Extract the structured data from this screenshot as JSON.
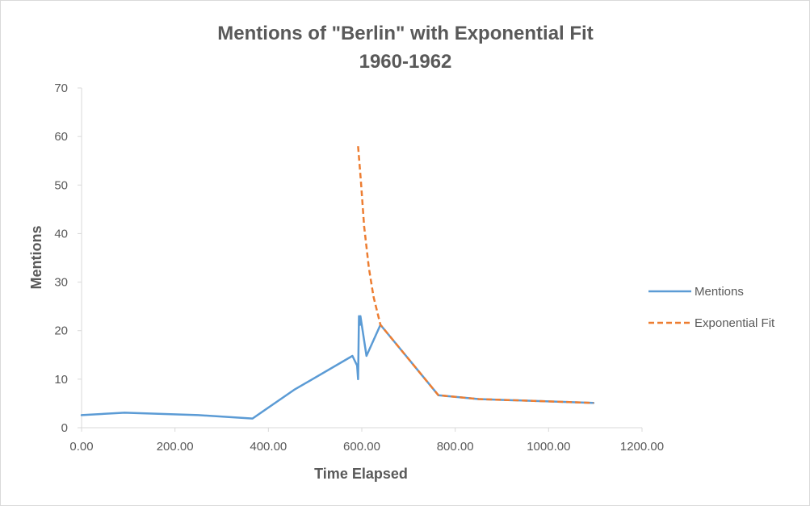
{
  "chart_data": {
    "type": "line",
    "title": "Mentions of \"Berlin\" with Exponential Fit",
    "subtitle": "1960-1962",
    "xlabel": "Time Elapsed",
    "ylabel": "Mentions",
    "xlim": [
      0,
      1200
    ],
    "ylim": [
      0,
      70
    ],
    "x_ticks": [
      "0.00",
      "200.00",
      "400.00",
      "600.00",
      "800.00",
      "1000.00",
      "1200.00"
    ],
    "y_ticks": [
      "0",
      "10",
      "20",
      "30",
      "40",
      "50",
      "60",
      "70"
    ],
    "grid": false,
    "legend_position": "right",
    "series": [
      {
        "name": "Mentions",
        "color": "#5b9bd5",
        "dash": "solid",
        "x": [
          0,
          92,
          250,
          366,
          455,
          580,
          590,
          592,
          594,
          596,
          597,
          610,
          640,
          764,
          850,
          1096
        ],
        "y": [
          2.6,
          3.1,
          2.6,
          1.9,
          7.8,
          14.8,
          12.8,
          10.0,
          23.0,
          21.2,
          23.0,
          14.8,
          21.2,
          6.7,
          5.9,
          5.1
        ]
      },
      {
        "name": "Exponential Fit",
        "color": "#ed7d31",
        "dash": "dashed",
        "x": [
          592,
          598,
          605,
          615,
          625,
          640,
          764,
          850,
          1096
        ],
        "y": [
          58.0,
          51.0,
          41.5,
          33.0,
          27.0,
          21.2,
          6.7,
          5.9,
          5.1
        ]
      }
    ]
  }
}
